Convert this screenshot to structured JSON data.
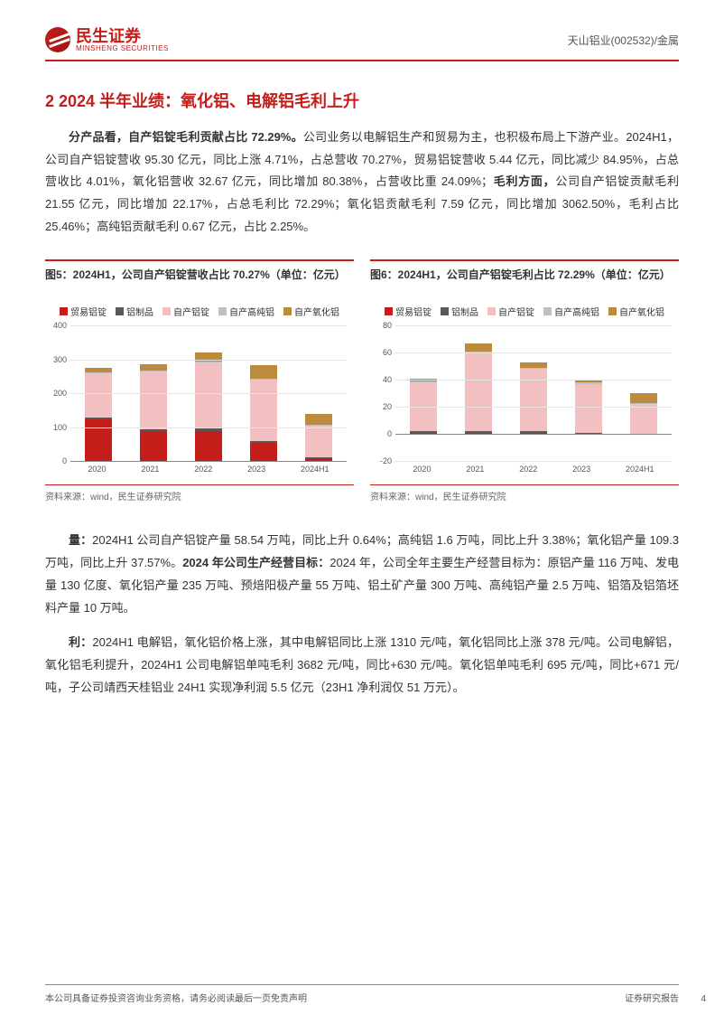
{
  "header": {
    "logo_cn": "民生证券",
    "logo_en": "MINSHENG SECURITIES",
    "right": "天山铝业(002532)/金属"
  },
  "section_title": "2 2024 半年业绩：氧化铝、电解铝毛利上升",
  "para1": {
    "bold1": "分产品看，自产铝锭毛利贡献占比 72.29%。",
    "text1": "公司业务以电解铝生产和贸易为主，也积极布局上下游产业。2024H1，公司自产铝锭营收 95.30 亿元，同比上涨 4.71%，占总营收 70.27%，贸易铝锭营收 5.44 亿元，同比减少 84.95%，占总营收比 4.01%，氧化铝营收 32.67 亿元，同比增加 80.38%，占营收比重 24.09%；",
    "bold2": "毛利方面，",
    "text2": "公司自产铝锭贡献毛利 21.55 亿元，同比增加 22.17%，占总毛利比 72.29%；氧化铝贡献毛利 7.59 亿元，同比增加 3062.50%，毛利占比 25.46%；高纯铝贡献毛利 0.67 亿元，占比 2.25%。"
  },
  "chart5": {
    "title": "图5：2024H1，公司自产铝锭营收占比 70.27%（单位：亿元）",
    "type": "stacked-bar",
    "categories": [
      "2020",
      "2021",
      "2022",
      "2023",
      "2024H1"
    ],
    "legend": [
      "贸易铝锭",
      "铝制品",
      "自产铝锭",
      "自产高纯铝",
      "自产氧化铝"
    ],
    "colors": [
      "#c41e1a",
      "#595959",
      "#f2c0c0",
      "#bfbfbf",
      "#bc8b3e"
    ],
    "ylim": [
      0,
      400
    ],
    "ytick_step": 100,
    "yticks": [
      "0",
      "100",
      "200",
      "300",
      "400"
    ],
    "series": {
      "2020": [
        125,
        5,
        130,
        3,
        12
      ],
      "2021": [
        90,
        5,
        170,
        3,
        18
      ],
      "2022": [
        90,
        6,
        195,
        4,
        25
      ],
      "2023": [
        55,
        5,
        180,
        3,
        40
      ],
      "2024H1": [
        8,
        3,
        95,
        2,
        33
      ]
    },
    "grid_color": "#e5e5e5",
    "source": "资料来源：wind，民生证券研究院"
  },
  "chart6": {
    "title": "图6：2024H1，公司自产铝锭毛利占比 72.29%（单位：亿元）",
    "type": "stacked-bar",
    "categories": [
      "2020",
      "2021",
      "2022",
      "2023",
      "2024H1"
    ],
    "legend": [
      "贸易铝锭",
      "铝制品",
      "自产铝锭",
      "自产高纯铝",
      "自产氧化铝"
    ],
    "colors": [
      "#c41e1a",
      "#595959",
      "#f2c0c0",
      "#bfbfbf",
      "#bc8b3e"
    ],
    "ylim": [
      -20,
      80
    ],
    "ytick_step": 20,
    "yticks": [
      "-20",
      "0",
      "20",
      "40",
      "60",
      "80"
    ],
    "series": {
      "2020": [
        1,
        1,
        36,
        1,
        2
      ],
      "2021": [
        1,
        1,
        58,
        1,
        6
      ],
      "2022": [
        1,
        1,
        46,
        1,
        4
      ],
      "2023": [
        0.5,
        0.5,
        36,
        1,
        2
      ],
      "2024H1": [
        0.3,
        0.3,
        21.5,
        0.7,
        7.6
      ]
    },
    "grid_color": "#e5e5e5",
    "source": "资料来源：wind，民生证券研究院"
  },
  "para2": {
    "bold1": "量：",
    "text1": "2024H1 公司自产铝锭产量 58.54 万吨，同比上升 0.64%；高纯铝 1.6 万吨，同比上升 3.38%；氧化铝产量 109.3 万吨，同比上升 37.57%。",
    "bold2": "2024 年公司生产经营目标：",
    "text2": "2024 年，公司全年主要生产经营目标为：原铝产量 116 万吨、发电量 130 亿度、氧化铝产量 235 万吨、预焙阳极产量 55 万吨、铝土矿产量 300 万吨、高纯铝产量 2.5 万吨、铝箔及铝箔坯料产量 10 万吨。"
  },
  "para3": {
    "bold1": "利：",
    "text1": "2024H1 电解铝，氧化铝价格上涨，其中电解铝同比上涨 1310 元/吨，氧化铝同比上涨 378 元/吨。公司电解铝，氧化铝毛利提升，2024H1 公司电解铝单吨毛利 3682 元/吨，同比+630 元/吨。氧化铝单吨毛利 695 元/吨，同比+671 元/吨，子公司靖西天桂铝业 24H1 实现净利润 5.5 亿元（23H1 净利润仅 51 万元）。"
  },
  "footer": {
    "left": "本公司具备证券投资咨询业务资格，请务必阅读最后一页免责声明",
    "right": "证券研究报告",
    "page": "4"
  }
}
